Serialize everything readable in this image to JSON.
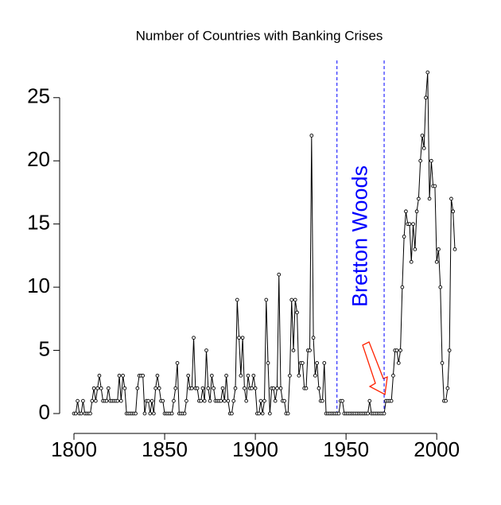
{
  "chart_data": {
    "type": "line-points",
    "title": "Number of Countries with Banking Crises",
    "annotation": "Bretton Woods",
    "vlines": [
      1945,
      1971
    ],
    "vline_color": "#0000ff",
    "arrow_color": "#ff2200",
    "color": "#000000",
    "xlim": [
      1800,
      2010
    ],
    "ylim": [
      0,
      27
    ],
    "xticks": [
      1800,
      1850,
      1900,
      1950,
      2000
    ],
    "yticks": [
      0,
      5,
      10,
      15,
      20,
      25
    ],
    "x": [
      1800,
      1801,
      1802,
      1803,
      1804,
      1805,
      1806,
      1807,
      1808,
      1809,
      1810,
      1811,
      1812,
      1813,
      1814,
      1815,
      1816,
      1817,
      1818,
      1819,
      1820,
      1821,
      1822,
      1823,
      1824,
      1825,
      1826,
      1827,
      1828,
      1829,
      1830,
      1831,
      1832,
      1833,
      1834,
      1835,
      1836,
      1837,
      1838,
      1839,
      1840,
      1841,
      1842,
      1843,
      1844,
      1845,
      1846,
      1847,
      1848,
      1849,
      1850,
      1851,
      1852,
      1853,
      1854,
      1855,
      1856,
      1857,
      1858,
      1859,
      1860,
      1861,
      1862,
      1863,
      1864,
      1865,
      1866,
      1867,
      1868,
      1869,
      1870,
      1871,
      1872,
      1873,
      1874,
      1875,
      1876,
      1877,
      1878,
      1879,
      1880,
      1881,
      1882,
      1883,
      1884,
      1885,
      1886,
      1887,
      1888,
      1889,
      1890,
      1891,
      1892,
      1893,
      1894,
      1895,
      1896,
      1897,
      1898,
      1899,
      1900,
      1901,
      1902,
      1903,
      1904,
      1905,
      1906,
      1907,
      1908,
      1909,
      1910,
      1911,
      1912,
      1913,
      1914,
      1915,
      1916,
      1917,
      1918,
      1919,
      1920,
      1921,
      1922,
      1923,
      1924,
      1925,
      1926,
      1927,
      1928,
      1929,
      1930,
      1931,
      1932,
      1933,
      1934,
      1935,
      1936,
      1937,
      1938,
      1939,
      1940,
      1941,
      1942,
      1943,
      1944,
      1945,
      1946,
      1947,
      1948,
      1949,
      1950,
      1951,
      1952,
      1953,
      1954,
      1955,
      1956,
      1957,
      1958,
      1959,
      1960,
      1961,
      1962,
      1963,
      1964,
      1965,
      1966,
      1967,
      1968,
      1969,
      1970,
      1971,
      1972,
      1973,
      1974,
      1975,
      1976,
      1977,
      1978,
      1979,
      1980,
      1981,
      1982,
      1983,
      1984,
      1985,
      1986,
      1987,
      1988,
      1989,
      1990,
      1991,
      1992,
      1993,
      1994,
      1995,
      1996,
      1997,
      1998,
      1999,
      2000,
      2001,
      2002,
      2003,
      2004,
      2005,
      2006,
      2007,
      2008,
      2009,
      2010
    ],
    "values": [
      0,
      0,
      1,
      0,
      0,
      1,
      0,
      0,
      0,
      0,
      1,
      2,
      1,
      2,
      3,
      2,
      1,
      1,
      1,
      2,
      1,
      1,
      1,
      1,
      1,
      3,
      1,
      3,
      2,
      0,
      0,
      0,
      0,
      0,
      0,
      2,
      3,
      3,
      3,
      0,
      1,
      1,
      0,
      1,
      0,
      2,
      3,
      2,
      1,
      1,
      0,
      0,
      0,
      0,
      0,
      1,
      2,
      4,
      0,
      0,
      0,
      0,
      1,
      3,
      2,
      2,
      6,
      2,
      2,
      1,
      1,
      2,
      1,
      5,
      2,
      1,
      3,
      2,
      1,
      1,
      1,
      1,
      2,
      1,
      3,
      1,
      0,
      0,
      1,
      2,
      9,
      6,
      3,
      6,
      2,
      1,
      3,
      2,
      2,
      3,
      2,
      0,
      0,
      1,
      0,
      1,
      9,
      4,
      0,
      2,
      2,
      1,
      2,
      11,
      2,
      1,
      1,
      0,
      0,
      3,
      9,
      5,
      9,
      8,
      3,
      4,
      4,
      2,
      2,
      5,
      5,
      22,
      6,
      3,
      4,
      2,
      1,
      1,
      4,
      0,
      0,
      0,
      0,
      0,
      0,
      0,
      0,
      1,
      1,
      0,
      0,
      0,
      0,
      0,
      0,
      0,
      0,
      0,
      0,
      0,
      0,
      0,
      0,
      1,
      0,
      0,
      0,
      0,
      0,
      0,
      0,
      0,
      1,
      1,
      1,
      1,
      3,
      5,
      5,
      4,
      5,
      10,
      14,
      16,
      15,
      15,
      12,
      15,
      13,
      16,
      17,
      20,
      22,
      21,
      25,
      27,
      17,
      20,
      18,
      18,
      12,
      13,
      10,
      4,
      1,
      1,
      2,
      5,
      17,
      16,
      13
    ]
  }
}
